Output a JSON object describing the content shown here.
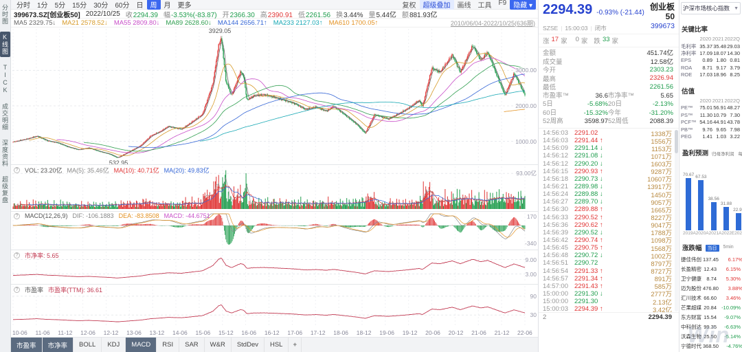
{
  "colors": {
    "up": "#e03434",
    "down": "#1f9d4d",
    "dark": "#333333",
    "blue": "#2743cf",
    "accent": "#3b68f0"
  },
  "watermark": "Win",
  "top_toolbar": {
    "periods": [
      "分时",
      "1分",
      "5分",
      "15分",
      "30分",
      "60分",
      "日",
      "周",
      "月",
      "更多"
    ],
    "selected_period": "周",
    "actions": [
      "复权",
      "超级叠加",
      "画线",
      "工具",
      "F9",
      "隐藏"
    ],
    "highlighted_action": "超级叠加"
  },
  "quote_bar": {
    "symbol": "399673.SZ[创业板50]",
    "date": "2022/10/25",
    "fields": [
      {
        "label": "收",
        "value": "2294.39",
        "color": "down"
      },
      {
        "label": "幅",
        "value": "-3.53%(-83.87)",
        "color": "down"
      },
      {
        "label": "开",
        "value": "2366.30",
        "color": "down"
      },
      {
        "label": "高",
        "value": "2390.91",
        "color": "up"
      },
      {
        "label": "低",
        "value": "2261.56",
        "color": "down"
      },
      {
        "label": "换",
        "value": "3.44%",
        "color": "dark"
      },
      {
        "label": "量",
        "value": "5.44亿",
        "color": "dark"
      },
      {
        "label": "额",
        "value": "881.93亿",
        "color": "dark"
      }
    ]
  },
  "ma_bar": {
    "items": [
      {
        "label": "MA5",
        "value": "2329.75",
        "dir": "↓",
        "color": "#666666"
      },
      {
        "label": "MA21",
        "value": "2578.52",
        "dir": "↓",
        "color": "#d79b2a"
      },
      {
        "label": "MA55",
        "value": "2809.80",
        "dir": "↓",
        "color": "#c84fc8"
      },
      {
        "label": "MA89",
        "value": "2628.60",
        "dir": "↓",
        "color": "#2f9e4f"
      },
      {
        "label": "MA144",
        "value": "2656.71",
        "dir": "↑",
        "color": "#3566d6"
      },
      {
        "label": "MA233",
        "value": "2127.03",
        "dir": "↑",
        "color": "#18a8b4"
      },
      {
        "label": "MA610",
        "value": "1700.05",
        "dir": "↑",
        "color": "#e39223"
      }
    ],
    "range": "2010/06/04-2022/10/25(636期)"
  },
  "sidebar": {
    "items": [
      "分时图",
      "K线图",
      "TICK",
      "成交明细",
      "深度资料",
      "超级复盘"
    ],
    "selected": "K线图"
  },
  "bottom_toolbar": {
    "items": [
      "市盈率",
      "市净率",
      "BOLL",
      "KDJ",
      "MACD",
      "RSI",
      "SAR",
      "W&R",
      "StdDev",
      "HSL"
    ],
    "active": [
      "市盈率",
      "市净率",
      "MACD"
    ],
    "add_label": "+"
  },
  "quote_panel": {
    "price": "2294.39",
    "change_pct": "-0.93%",
    "change_val": "(-21.44)",
    "name": "创业板50",
    "code": "399673",
    "exchange": "SZSE",
    "time": "15:00:03",
    "status": "闭市",
    "breadth": {
      "up_label": "涨",
      "up_count": "17",
      "flat_label": "平",
      "flat_count": "0",
      "down_label": "跌",
      "down_count": "33",
      "unit": "家"
    },
    "stats": [
      {
        "label": "金额",
        "value": "451.74亿",
        "color": "dark"
      },
      {
        "label": "成交量",
        "value": "12.58亿",
        "color": "dark"
      },
      {
        "label": "今开",
        "value": "2303.23",
        "color": "down"
      },
      {
        "label": "最高",
        "value": "2326.94",
        "color": "up"
      },
      {
        "label": "最低",
        "value": "2261.56",
        "color": "down"
      }
    ],
    "ratios": [
      {
        "label": "市盈率™",
        "value": "36.6",
        "color": "dark"
      },
      {
        "label": "市净率™",
        "value": "5.65",
        "color": "dark"
      },
      {
        "label": "5日",
        "value": "-5.68%",
        "color": "down"
      },
      {
        "label": "20日",
        "value": "-2.13%",
        "color": "down"
      },
      {
        "label": "60日",
        "value": "-15.32%",
        "color": "down"
      },
      {
        "label": "今年",
        "value": "-31.20%",
        "color": "down"
      },
      {
        "label": "52周高",
        "value": "3598.97",
        "color": "dark"
      },
      {
        "label": "52周低",
        "value": "2088.39",
        "color": "dark"
      }
    ],
    "ticks": [
      {
        "time": "14:56:03",
        "price": "2291.02",
        "dir": "",
        "vol": "1338万",
        "color": "up"
      },
      {
        "time": "14:56:03",
        "price": "2291.44",
        "dir": "↑",
        "vol": "1556万",
        "color": "up"
      },
      {
        "time": "14:56:09",
        "price": "2291.14",
        "dir": "↓",
        "vol": "1153万",
        "color": "down"
      },
      {
        "time": "14:56:12",
        "price": "2291.08",
        "dir": "↓",
        "vol": "1071万",
        "color": "down"
      },
      {
        "time": "14:56:12",
        "price": "2290.20",
        "dir": "↓",
        "vol": "1603万",
        "color": "down"
      },
      {
        "time": "14:56:15",
        "price": "2290.93",
        "dir": "↑",
        "vol": "9287万",
        "color": "up"
      },
      {
        "time": "14:56:18",
        "price": "2290.73",
        "dir": "↓",
        "vol": "10607万",
        "color": "down"
      },
      {
        "time": "14:56:21",
        "price": "2289.98",
        "dir": "↓",
        "vol": "13917万",
        "color": "down"
      },
      {
        "time": "14:56:24",
        "price": "2289.88",
        "dir": "↓",
        "vol": "1450万",
        "color": "down"
      },
      {
        "time": "14:56:27",
        "price": "2289.70",
        "dir": "↓",
        "vol": "9057万",
        "color": "down"
      },
      {
        "time": "14:56:30",
        "price": "2289.88",
        "dir": "↑",
        "vol": "1665万",
        "color": "up"
      },
      {
        "time": "14:56:33",
        "price": "2290.52",
        "dir": "↑",
        "vol": "8227万",
        "color": "up"
      },
      {
        "time": "14:56:36",
        "price": "2290.62",
        "dir": "↑",
        "vol": "9047万",
        "color": "up"
      },
      {
        "time": "14:56:39",
        "price": "2290.52",
        "dir": "↓",
        "vol": "1788万",
        "color": "down"
      },
      {
        "time": "14:56:42",
        "price": "2290.74",
        "dir": "↑",
        "vol": "1098万",
        "color": "up"
      },
      {
        "time": "14:56:45",
        "price": "2290.75",
        "dir": "↑",
        "vol": "1568万",
        "color": "up"
      },
      {
        "time": "14:56:48",
        "price": "2290.72",
        "dir": "↓",
        "vol": "1002万",
        "color": "down"
      },
      {
        "time": "14:56:51",
        "price": "2290.72",
        "dir": "",
        "vol": "8797万",
        "color": "down"
      },
      {
        "time": "14:56:54",
        "price": "2291.33",
        "dir": "↑",
        "vol": "8727万",
        "color": "up"
      },
      {
        "time": "14:56:57",
        "price": "2291.34",
        "dir": "↑",
        "vol": "891万",
        "color": "up"
      },
      {
        "time": "14:57:00",
        "price": "2291.43",
        "dir": "↑",
        "vol": "585万",
        "color": "up"
      },
      {
        "time": "15:00:00",
        "price": "2291.30",
        "dir": "↓",
        "vol": "2777万",
        "color": "down"
      },
      {
        "time": "15:00:00",
        "price": "2291.30",
        "dir": "",
        "vol": "2.13亿",
        "color": "down"
      },
      {
        "time": "15:00:03",
        "price": "2294.39",
        "dir": "↑",
        "vol": "3.42亿",
        "color": "up"
      }
    ],
    "footer": {
      "count": "2",
      "price": "2294.39"
    }
  },
  "fundamentals": {
    "index_selector": "沪深市场核心指数",
    "key_ratios": {
      "title": "关键比率",
      "years": [
        "2020",
        "2021",
        "2022Q"
      ],
      "rows": [
        [
          "毛利率",
          "35.37",
          "35.48",
          "29.03"
        ],
        [
          "净利率",
          "17.09",
          "18.07",
          "14.30"
        ],
        [
          "EPS",
          "0.89",
          "1.80",
          "0.81"
        ],
        [
          "ROA",
          "8.71",
          "9.17",
          "3.79"
        ],
        [
          "ROE",
          "17.03",
          "18.96",
          "8.25"
        ]
      ]
    },
    "valuation": {
      "title": "估值",
      "years": [
        "2020",
        "2021",
        "2022Q"
      ],
      "rows": [
        [
          "PE™",
          "75.01",
          "56.91",
          "48.27"
        ],
        [
          "PS™",
          "11.30",
          "10.79",
          "7.30"
        ],
        [
          "PCF™",
          "54.16",
          "44.91",
          "43.78"
        ],
        [
          "PB™",
          "9.76",
          "9.65",
          "7.98"
        ],
        [
          "PEG",
          "1.41",
          "1.03",
          "3.22"
        ]
      ]
    }
  },
  "forecast": {
    "title": "盈利预测",
    "tabs": [
      "归母净利润",
      "每股收益",
      "PE"
    ],
    "selected_tab": "PE"
  },
  "movers": {
    "title": "涨跌幅",
    "tabs": [
      "当日",
      "5min"
    ],
    "selected_tab": "当日",
    "rows": [
      [
        "捷佳伟创",
        "137.45",
        "6.17%",
        "up"
      ],
      [
        "长盈精密",
        "12.43",
        "6.15%",
        "up"
      ],
      [
        "卫宁健康",
        "8.74",
        "5.30%",
        "up"
      ],
      [
        "迈为股份",
        "476.80",
        "3.88%",
        "up"
      ],
      [
        "汇川技术",
        "66.60",
        "3.46%",
        "up"
      ],
      [
        "芒果超媒",
        "20.84",
        "-10.09%",
        "down"
      ],
      [
        "东方财富",
        "15.54",
        "-9.07%",
        "down"
      ],
      [
        "中科创达",
        "99.35",
        "-6.63%",
        "down"
      ],
      [
        "沃森生物",
        "25.50",
        "-5.14%",
        "down"
      ],
      [
        "宁德时代",
        "368.50",
        "-4.76%",
        "down"
      ]
    ]
  },
  "chart_data": {
    "type": "candlestick",
    "title": "创业板50 周K线 (399673.SZ)",
    "date_range": "2010/06/04-2022/10/25",
    "period_count": 636,
    "x_tick_labels": [
      "10-06",
      "11-06",
      "11-12",
      "12-06",
      "12-12",
      "13-06",
      "13-12",
      "14-06",
      "15-06",
      "15-12",
      "16-06",
      "16-12",
      "17-06",
      "17-12",
      "18-06",
      "18-12",
      "19-06",
      "19-12",
      "20-06",
      "20-12",
      "21-06",
      "21-12",
      "22-06"
    ],
    "price_pane": {
      "domain": [
        430,
        4150
      ],
      "grid": [
        {
          "label": "3000.00",
          "value": 3000
        },
        {
          "label": "2000.00",
          "value": 2000
        },
        {
          "label": "1000.00",
          "value": 1000
        }
      ],
      "high_annotation": {
        "label": "3929.05",
        "value": 3929.05
      },
      "low_annotation": {
        "label": "532.95",
        "value": 532.95
      },
      "close_anchors": [
        [
          0.0,
          980
        ],
        [
          0.027,
          1060
        ],
        [
          0.047,
          1150
        ],
        [
          0.067,
          1020
        ],
        [
          0.087,
          960
        ],
        [
          0.107,
          840
        ],
        [
          0.128,
          760
        ],
        [
          0.148,
          820
        ],
        [
          0.168,
          720
        ],
        [
          0.188,
          640
        ],
        [
          0.204,
          533
        ],
        [
          0.228,
          720
        ],
        [
          0.249,
          880
        ],
        [
          0.269,
          1150
        ],
        [
          0.289,
          1280
        ],
        [
          0.303,
          1420
        ],
        [
          0.329,
          1350
        ],
        [
          0.35,
          1550
        ],
        [
          0.37,
          1750
        ],
        [
          0.39,
          2600
        ],
        [
          0.402,
          3750
        ],
        [
          0.407,
          3929
        ],
        [
          0.416,
          2700
        ],
        [
          0.427,
          2300
        ],
        [
          0.444,
          2950
        ],
        [
          0.45,
          2850
        ],
        [
          0.457,
          2150
        ],
        [
          0.471,
          2280
        ],
        [
          0.491,
          2320
        ],
        [
          0.511,
          2250
        ],
        [
          0.531,
          2150
        ],
        [
          0.551,
          2050
        ],
        [
          0.571,
          1900
        ],
        [
          0.592,
          1980
        ],
        [
          0.612,
          1850
        ],
        [
          0.626,
          1980
        ],
        [
          0.652,
          1700
        ],
        [
          0.672,
          1480
        ],
        [
          0.688,
          1230
        ],
        [
          0.706,
          1750
        ],
        [
          0.733,
          1620
        ],
        [
          0.753,
          1780
        ],
        [
          0.773,
          1950
        ],
        [
          0.793,
          2150
        ],
        [
          0.8,
          1980
        ],
        [
          0.818,
          3050
        ],
        [
          0.834,
          2950
        ],
        [
          0.858,
          3450
        ],
        [
          0.874,
          2950
        ],
        [
          0.898,
          3680
        ],
        [
          0.914,
          3280
        ],
        [
          0.927,
          3520
        ],
        [
          0.935,
          3250
        ],
        [
          0.943,
          2950
        ],
        [
          0.961,
          2300
        ],
        [
          0.979,
          2900
        ],
        [
          0.993,
          2500
        ],
        [
          1.0,
          2294.39
        ]
      ]
    },
    "ma_windows": [
      5,
      21,
      55,
      89,
      144,
      233,
      610
    ],
    "volume_pane": {
      "domain": [
        0,
        110
      ],
      "grid": [
        {
          "label": "93.00亿",
          "value": 93
        }
      ]
    },
    "macd_pane": {
      "domain": [
        -400,
        220
      ],
      "grid": [
        {
          "label": "170",
          "value": 170
        },
        {
          "label": "-340",
          "value": -340
        }
      ],
      "dif": -106.1883,
      "dea": -83.8508,
      "macd": -44.6751
    },
    "pb_pane": {
      "domain": [
        0,
        12
      ],
      "grid": [
        {
          "label": "9.00",
          "value": 9
        },
        {
          "label": "3.00",
          "value": 3
        }
      ],
      "latest": 5.65,
      "price_scale": 0.002463
    },
    "pe_pane": {
      "domain": [
        0,
        120
      ],
      "grid": [
        {
          "label": "90",
          "value": 90
        },
        {
          "label": "30",
          "value": 30
        }
      ],
      "latest": 36.61,
      "price_scale": 0.01596
    },
    "legends": {
      "volume": [
        {
          "text": "VOL: 23.20亿",
          "color": "#555555"
        },
        {
          "text": "MA(5): 35.46亿",
          "color": "#888888"
        },
        {
          "text": "MA(10): 40.71亿",
          "color": "#e03434"
        },
        {
          "text": "MA(20): 49.83亿",
          "color": "#3566d6"
        }
      ],
      "macd": [
        {
          "text": "MACD(12,26,9)",
          "color": "#555555"
        },
        {
          "text": "DIF: -106.1883",
          "color": "#888888"
        },
        {
          "text": "DEA: -83.8508",
          "color": "#e39223"
        },
        {
          "text": "MACD: -44.6751",
          "color": "#c84fc8"
        }
      ],
      "pb": [
        {
          "text": "市净率: 5.65",
          "color": "#c23a52"
        }
      ],
      "pe": [
        {
          "text": "市盈率",
          "color": "#555555"
        },
        {
          "text": "市盈率(TTM): 36.61",
          "color": "#c23a52"
        }
      ]
    },
    "forecast": {
      "type": "bar",
      "title": "盈利预测",
      "categories": [
        "2019A",
        "2020A",
        "2021A",
        "2022E",
        "2023E",
        "2024E"
      ],
      "values": [
        70.67,
        67.53,
        38.56,
        31.88,
        22.93,
        17.69
      ],
      "bar_color": "#2e6bd6"
    }
  }
}
